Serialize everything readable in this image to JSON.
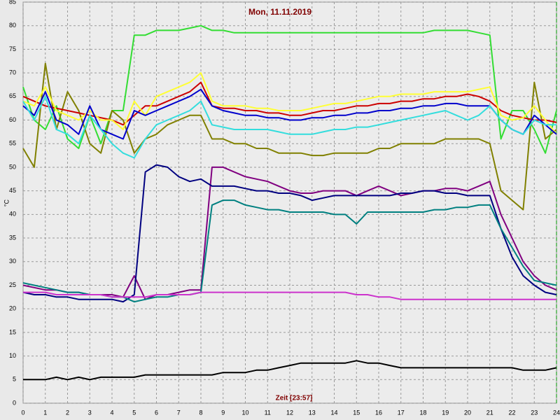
{
  "chart_data": {
    "type": "line",
    "title": "Mon, 11.11.2019",
    "x_label": "Zeit [23:57]",
    "y_label": "°C",
    "xlim": [
      0,
      24
    ],
    "xticks": [
      0,
      1,
      2,
      3,
      4,
      5,
      6,
      7,
      8,
      9,
      10,
      11,
      12,
      13,
      14,
      15,
      16,
      17,
      18,
      19,
      20,
      21,
      22,
      23,
      24
    ],
    "ylim": [
      0,
      85
    ],
    "yticks": [
      0,
      5,
      10,
      15,
      20,
      25,
      30,
      35,
      40,
      45,
      50,
      55,
      60,
      65,
      70,
      75,
      80,
      85
    ],
    "grid": true,
    "x": [
      0,
      0.5,
      1,
      1.5,
      2,
      2.5,
      3,
      3.5,
      4,
      4.5,
      5,
      5.5,
      6,
      6.5,
      7,
      7.5,
      8,
      8.5,
      9,
      9.5,
      10,
      10.5,
      11,
      11.5,
      12,
      12.5,
      13,
      13.5,
      14,
      14.5,
      15,
      15.5,
      16,
      16.5,
      17,
      17.5,
      18,
      18.5,
      19,
      19.5,
      20,
      20.5,
      21,
      21.5,
      22,
      22.5,
      23,
      23.5,
      24
    ],
    "series": [
      {
        "color": "#33dd33",
        "values": [
          67,
          60,
          58,
          63,
          56,
          54,
          61,
          55,
          62,
          62,
          78,
          78,
          79,
          79,
          79,
          79.5,
          80,
          79,
          79,
          78.5,
          78.5,
          78.5,
          78.5,
          78.5,
          78.5,
          78.5,
          78.5,
          78.5,
          78.5,
          78.5,
          78.5,
          78.5,
          78.5,
          78.5,
          78.5,
          78.5,
          78.5,
          79,
          79,
          79,
          79,
          78.5,
          78,
          56,
          62,
          62,
          58,
          53,
          62
        ]
      },
      {
        "color": "#808000",
        "values": [
          54,
          50,
          72,
          58,
          66,
          62,
          55,
          53,
          62,
          60,
          53,
          56,
          57,
          59,
          60,
          61,
          61,
          56,
          56,
          55,
          55,
          54,
          54,
          53,
          53,
          53,
          52.5,
          52.5,
          53,
          53,
          53,
          53,
          54,
          54,
          55,
          55,
          55,
          55,
          56,
          56,
          56,
          56,
          55,
          45,
          43,
          41,
          68,
          56,
          58
        ]
      },
      {
        "color": "#cc0000",
        "values": [
          65,
          64,
          63,
          62.5,
          62,
          61.5,
          61,
          60.5,
          60,
          59,
          61,
          63,
          63,
          64,
          65,
          66,
          68,
          63,
          62.5,
          62.5,
          62,
          62,
          61.5,
          61.5,
          61,
          61,
          61.5,
          62,
          62,
          62.5,
          63,
          63,
          63.5,
          63.5,
          64,
          64,
          64.5,
          64.5,
          65,
          65,
          65.5,
          65,
          64,
          62,
          61,
          60.5,
          60,
          60,
          59.5
        ]
      },
      {
        "color": "#ffff33",
        "values": [
          64,
          63,
          67,
          62,
          61,
          60,
          62,
          60,
          60,
          58,
          64,
          61,
          65,
          66,
          67,
          68,
          70,
          64,
          63,
          63,
          63,
          62.5,
          62.5,
          62,
          62,
          62,
          62.5,
          63,
          63.5,
          63.5,
          64,
          64.5,
          65,
          65,
          65.5,
          65.5,
          65.5,
          66,
          66,
          66,
          66,
          66.5,
          67,
          61,
          60,
          60.5,
          63,
          60,
          57
        ]
      },
      {
        "color": "#0000cc",
        "values": [
          63,
          61,
          66,
          60,
          59,
          57,
          63,
          58,
          57,
          56,
          62,
          61,
          62,
          63,
          64,
          65,
          66.5,
          63,
          62,
          61.5,
          61,
          61,
          60.5,
          60.5,
          60,
          60,
          60.5,
          60.5,
          61,
          61,
          61.5,
          61.5,
          62,
          62,
          62.5,
          62.5,
          63,
          63,
          63.5,
          63.5,
          63,
          63,
          63,
          60,
          58,
          57,
          61,
          59,
          57
        ]
      },
      {
        "color": "#33dddd",
        "values": [
          64,
          60,
          65,
          58,
          57,
          55,
          61,
          58,
          55,
          53,
          52,
          56,
          59,
          60,
          61,
          62,
          64,
          59,
          58.5,
          58,
          58,
          58,
          58,
          57.5,
          57,
          57,
          57,
          57.5,
          58,
          58,
          58.5,
          58.5,
          59,
          59.5,
          60,
          60.5,
          61,
          61.5,
          62,
          61,
          60,
          61,
          63,
          60,
          58,
          57,
          60,
          59,
          59
        ]
      },
      {
        "color": "#800080",
        "values": [
          25,
          24.5,
          24,
          24,
          23.5,
          23.5,
          23,
          23,
          23,
          22.5,
          27,
          22,
          23,
          23,
          23.5,
          24,
          24,
          50,
          50,
          49,
          48,
          47.5,
          47,
          46,
          45,
          44.5,
          44.5,
          45,
          45,
          45,
          44,
          45,
          46,
          45,
          44,
          44.5,
          45,
          45,
          45.5,
          45.5,
          45,
          46,
          47,
          40,
          35,
          30,
          27,
          25,
          24
        ]
      },
      {
        "color": "#000080",
        "values": [
          23.5,
          23,
          23,
          22.5,
          22.5,
          22,
          22,
          22,
          22,
          21.5,
          23,
          49,
          50.5,
          50,
          48,
          47,
          47.5,
          46,
          46,
          46,
          45.5,
          45,
          45,
          44.5,
          44.5,
          44,
          43,
          43.5,
          44,
          44,
          44,
          44,
          44,
          44,
          44.5,
          44.5,
          45,
          45,
          44.5,
          44.5,
          44,
          44,
          44,
          37,
          31,
          27,
          25,
          23.5,
          23
        ]
      },
      {
        "color": "#008080",
        "values": [
          25.5,
          25,
          24.5,
          24,
          23.5,
          23.5,
          23,
          23,
          22.5,
          22.5,
          21.5,
          22,
          22.5,
          22.5,
          23,
          23,
          23.5,
          42,
          43,
          43,
          42,
          41.5,
          41,
          41,
          40.5,
          40.5,
          40.5,
          40.5,
          40,
          40,
          38,
          40.5,
          40.5,
          40.5,
          40.5,
          40.5,
          40.5,
          41,
          41,
          41.5,
          41.5,
          42,
          42,
          37,
          33,
          29,
          26,
          25.5,
          25
        ]
      },
      {
        "color": "#cc33cc",
        "values": [
          23.5,
          23.5,
          23.5,
          23,
          23,
          23,
          23,
          23,
          22.5,
          22.5,
          22.5,
          22.5,
          23,
          23,
          23,
          23,
          23.5,
          23.5,
          23.5,
          23.5,
          23.5,
          23.5,
          23.5,
          23.5,
          23.5,
          23.5,
          23.5,
          23.5,
          23.5,
          23.5,
          23,
          23,
          22.5,
          22.5,
          22,
          22,
          22,
          22,
          22,
          22,
          22,
          22,
          22,
          22,
          22,
          22,
          22,
          22,
          22
        ]
      },
      {
        "color": "#000000",
        "values": [
          5,
          5,
          5,
          5.5,
          5,
          5.5,
          5,
          5.5,
          5.5,
          5.5,
          5.5,
          6,
          6,
          6,
          6,
          6,
          6,
          6,
          6.5,
          6.5,
          6.5,
          7,
          7,
          7.5,
          8,
          8.5,
          8.5,
          8.5,
          8.5,
          8.5,
          9,
          8.5,
          8.5,
          8,
          7.5,
          7.5,
          7.5,
          7.5,
          7.5,
          7.5,
          7.5,
          7.5,
          7.5,
          7.5,
          7.5,
          7,
          7,
          7,
          7.5
        ]
      }
    ]
  }
}
